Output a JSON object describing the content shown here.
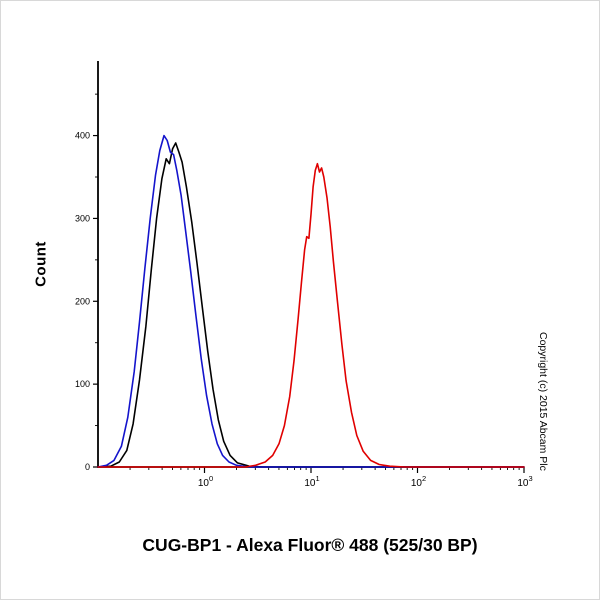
{
  "title": "CUG-BP1 - Alexa Fluor® 488 (525/30 BP)",
  "copyright": "Copyright (c) 2015 Abcam Plc",
  "chart_data": {
    "type": "line",
    "subtype": "flow-cytometry-histogram",
    "title": "CUG-BP1 - Alexa Fluor® 488 (525/30 BP)",
    "xlabel": "",
    "ylabel": "Count",
    "x_scale": "log10",
    "xlim_log10": [
      -1,
      3
    ],
    "ylim": [
      0,
      490
    ],
    "grid": false,
    "legend": "none",
    "y_ticks": [
      0,
      100,
      200,
      300,
      400
    ],
    "y_minor_step": 50,
    "x_tick_base": "10",
    "x_major_ticks_log10": [
      0,
      1,
      2,
      3
    ],
    "x_tick_exponents": [
      "0",
      "1",
      "2",
      "3"
    ],
    "axis_color": "#000000",
    "series": [
      {
        "name": "black-curve",
        "color": "#000000",
        "peak": {
          "log10x": -0.27,
          "count": 391
        },
        "points": [
          [
            -1.0,
            0
          ],
          [
            -0.88,
            1
          ],
          [
            -0.8,
            6
          ],
          [
            -0.73,
            20
          ],
          [
            -0.67,
            52
          ],
          [
            -0.61,
            105
          ],
          [
            -0.55,
            170
          ],
          [
            -0.5,
            238
          ],
          [
            -0.45,
            300
          ],
          [
            -0.4,
            348
          ],
          [
            -0.36,
            372
          ],
          [
            -0.33,
            366
          ],
          [
            -0.3,
            384
          ],
          [
            -0.27,
            391
          ],
          [
            -0.24,
            380
          ],
          [
            -0.21,
            368
          ],
          [
            -0.17,
            338
          ],
          [
            -0.12,
            296
          ],
          [
            -0.07,
            246
          ],
          [
            -0.02,
            192
          ],
          [
            0.03,
            140
          ],
          [
            0.08,
            94
          ],
          [
            0.13,
            57
          ],
          [
            0.18,
            31
          ],
          [
            0.24,
            14
          ],
          [
            0.31,
            5
          ],
          [
            0.42,
            1
          ],
          [
            0.55,
            0
          ],
          [
            3.0,
            0
          ]
        ]
      },
      {
        "name": "blue-curve",
        "color": "#1414cc",
        "peak": {
          "log10x": -0.38,
          "count": 400
        },
        "points": [
          [
            -1.0,
            0
          ],
          [
            -0.92,
            2
          ],
          [
            -0.85,
            8
          ],
          [
            -0.78,
            25
          ],
          [
            -0.72,
            60
          ],
          [
            -0.66,
            115
          ],
          [
            -0.61,
            175
          ],
          [
            -0.56,
            240
          ],
          [
            -0.51,
            300
          ],
          [
            -0.46,
            352
          ],
          [
            -0.42,
            382
          ],
          [
            -0.38,
            400
          ],
          [
            -0.35,
            394
          ],
          [
            -0.32,
            380
          ],
          [
            -0.29,
            377
          ],
          [
            -0.26,
            358
          ],
          [
            -0.22,
            328
          ],
          [
            -0.18,
            288
          ],
          [
            -0.13,
            236
          ],
          [
            -0.08,
            182
          ],
          [
            -0.03,
            130
          ],
          [
            0.02,
            86
          ],
          [
            0.07,
            52
          ],
          [
            0.12,
            28
          ],
          [
            0.17,
            14
          ],
          [
            0.23,
            6
          ],
          [
            0.3,
            2
          ],
          [
            0.42,
            0
          ],
          [
            3.0,
            0
          ]
        ]
      },
      {
        "name": "red-curve",
        "color": "#e00000",
        "peak": {
          "log10x": 1.06,
          "count": 366
        },
        "points": [
          [
            -1.0,
            0
          ],
          [
            0.38,
            0
          ],
          [
            0.48,
            2
          ],
          [
            0.57,
            6
          ],
          [
            0.64,
            14
          ],
          [
            0.7,
            28
          ],
          [
            0.75,
            50
          ],
          [
            0.8,
            85
          ],
          [
            0.84,
            128
          ],
          [
            0.88,
            180
          ],
          [
            0.91,
            222
          ],
          [
            0.94,
            262
          ],
          [
            0.96,
            278
          ],
          [
            0.98,
            276
          ],
          [
            1.0,
            305
          ],
          [
            1.02,
            338
          ],
          [
            1.04,
            358
          ],
          [
            1.06,
            366
          ],
          [
            1.08,
            356
          ],
          [
            1.1,
            361
          ],
          [
            1.12,
            350
          ],
          [
            1.15,
            325
          ],
          [
            1.18,
            290
          ],
          [
            1.21,
            248
          ],
          [
            1.25,
            198
          ],
          [
            1.29,
            148
          ],
          [
            1.33,
            104
          ],
          [
            1.38,
            66
          ],
          [
            1.43,
            38
          ],
          [
            1.49,
            19
          ],
          [
            1.56,
            8
          ],
          [
            1.64,
            3
          ],
          [
            1.74,
            1
          ],
          [
            1.88,
            0
          ],
          [
            3.0,
            0
          ]
        ]
      }
    ]
  }
}
